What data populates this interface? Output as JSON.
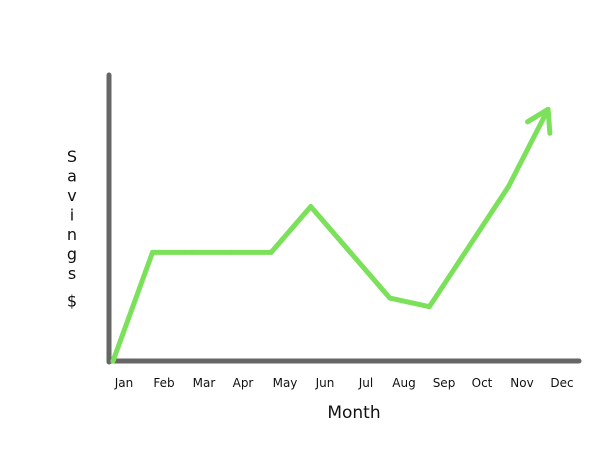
{
  "chart_data": {
    "type": "line",
    "title": "",
    "xlabel": "Month",
    "ylabel": "Savings $",
    "categories": [
      "Jan",
      "Feb",
      "Mar",
      "Apr",
      "May",
      "Jun",
      "Jul",
      "Aug",
      "Sep",
      "Oct",
      "Nov",
      "Dec"
    ],
    "series": [
      {
        "values": [
          0,
          38,
          38,
          38,
          38,
          54,
          38,
          22,
          19,
          40,
          61,
          88
        ]
      }
    ],
    "line_color": "#7be05a",
    "axis_color": "#666666",
    "end_arrow": true,
    "grid": false,
    "ylim": [
      0,
      100
    ]
  }
}
